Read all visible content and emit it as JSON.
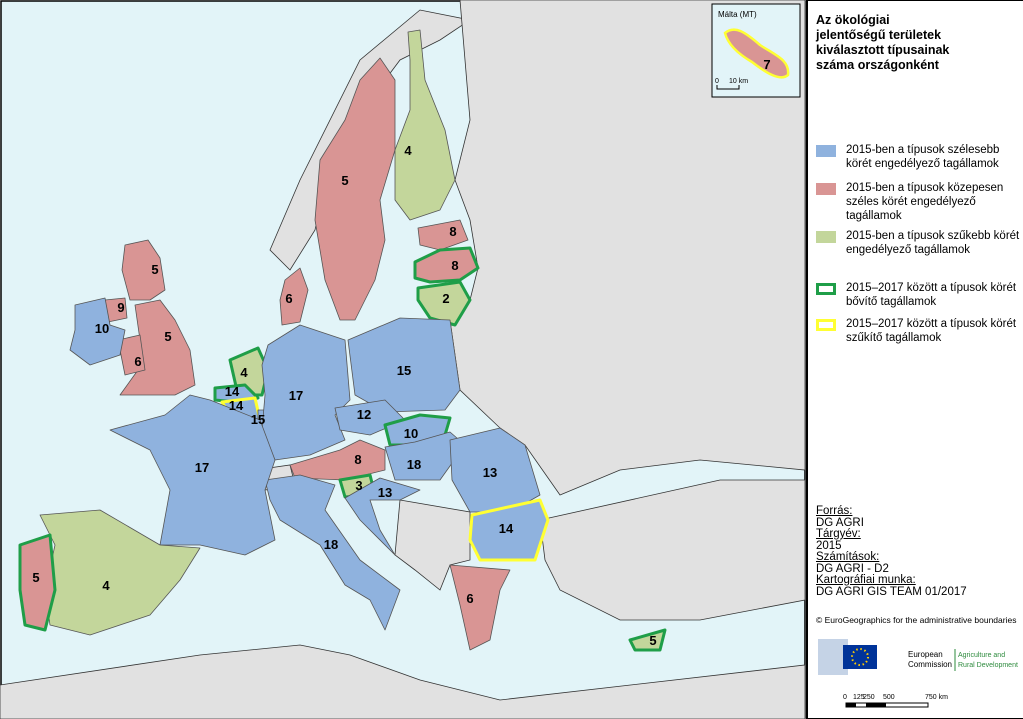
{
  "title": "Az ökológiai jelentőségű területek kiválasztott típusainak száma országonként",
  "inset": {
    "title": "Málta (MT)",
    "value": 7,
    "color": "#d99594",
    "outline": "#ffff33",
    "scale": [
      "0",
      "10 km"
    ]
  },
  "legend": [
    {
      "label": "2015-ben a típusok szélesebb körét engedélyező tagállamok",
      "color": "#8fb2de"
    },
    {
      "label": "2015-ben a típusok közepesen széles körét engedélyező tagállamok",
      "color": "#d99594"
    },
    {
      "label": "2015-ben a típusok szűkebb körét engedélyező tagállamok",
      "color": "#c3d69b"
    },
    {
      "label": "2015–2017 között a típusok körét bővítő tagállamok",
      "outline": "#1f9e48"
    },
    {
      "label": "2015–2017 között a típusok körét szűkítő tagállamok",
      "outline": "#ffff33"
    }
  ],
  "regions": [
    {
      "value": 5,
      "color": "#d99594"
    },
    {
      "value": 4,
      "color": "#c3d69b"
    },
    {
      "value": 8,
      "color": "#d99594"
    },
    {
      "value": 8,
      "color": "#d99594",
      "outline": "#1f9e48"
    },
    {
      "value": 2,
      "color": "#c3d69b",
      "outline": "#1f9e48"
    },
    {
      "value": 6,
      "color": "#d99594"
    },
    {
      "value": 5,
      "color": "#d99594"
    },
    {
      "value": 5,
      "color": "#d99594"
    },
    {
      "value": 6,
      "color": "#d99594"
    },
    {
      "value": 9,
      "color": "#d99594"
    },
    {
      "value": 10,
      "color": "#8fb2de"
    },
    {
      "value": 4,
      "color": "#c3d69b",
      "outline": "#1f9e48"
    },
    {
      "value": 14,
      "color": "#8fb2de",
      "outline": "#1f9e48"
    },
    {
      "value": 14,
      "color": "#8fb2de",
      "outline": "#ffff33"
    },
    {
      "value": 15,
      "color": "#8fb2de"
    },
    {
      "value": 17,
      "color": "#8fb2de"
    },
    {
      "value": 15,
      "color": "#8fb2de"
    },
    {
      "value": 12,
      "color": "#8fb2de"
    },
    {
      "value": 10,
      "color": "#8fb2de",
      "outline": "#1f9e48"
    },
    {
      "value": 8,
      "color": "#d99594"
    },
    {
      "value": 18,
      "color": "#8fb2de"
    },
    {
      "value": 3,
      "color": "#c3d69b",
      "outline": "#1f9e48"
    },
    {
      "value": 13,
      "color": "#8fb2de"
    },
    {
      "value": 13,
      "color": "#8fb2de"
    },
    {
      "value": 14,
      "color": "#8fb2de",
      "outline": "#ffff33"
    },
    {
      "value": 6,
      "color": "#d99594"
    },
    {
      "value": 18,
      "color": "#8fb2de"
    },
    {
      "value": 17,
      "color": "#8fb2de"
    },
    {
      "value": 4,
      "color": "#c3d69b"
    },
    {
      "value": 5,
      "color": "#d99594",
      "outline": "#1f9e48"
    },
    {
      "value": 5,
      "color": "#c3d69b",
      "outline": "#1f9e48"
    }
  ],
  "sources": [
    {
      "heading": "Forrás:",
      "text": "DG AGRI"
    },
    {
      "heading": "Tárgyév:",
      "text": "2015"
    },
    {
      "heading": "Számítások:",
      "text": "DG AGRI - D2"
    },
    {
      "heading": "Kartográfiai munka:",
      "text": "DG AGRI GIS TEAM 01/2017"
    }
  ],
  "copyright": "© EuroGeographics for the administrative boundaries",
  "logo": {
    "name": [
      "European",
      "Commission"
    ],
    "dg": [
      "Agriculture and",
      "Rural Development"
    ]
  },
  "scalebar": [
    "0",
    "125",
    "250",
    "500",
    "750 km"
  ]
}
